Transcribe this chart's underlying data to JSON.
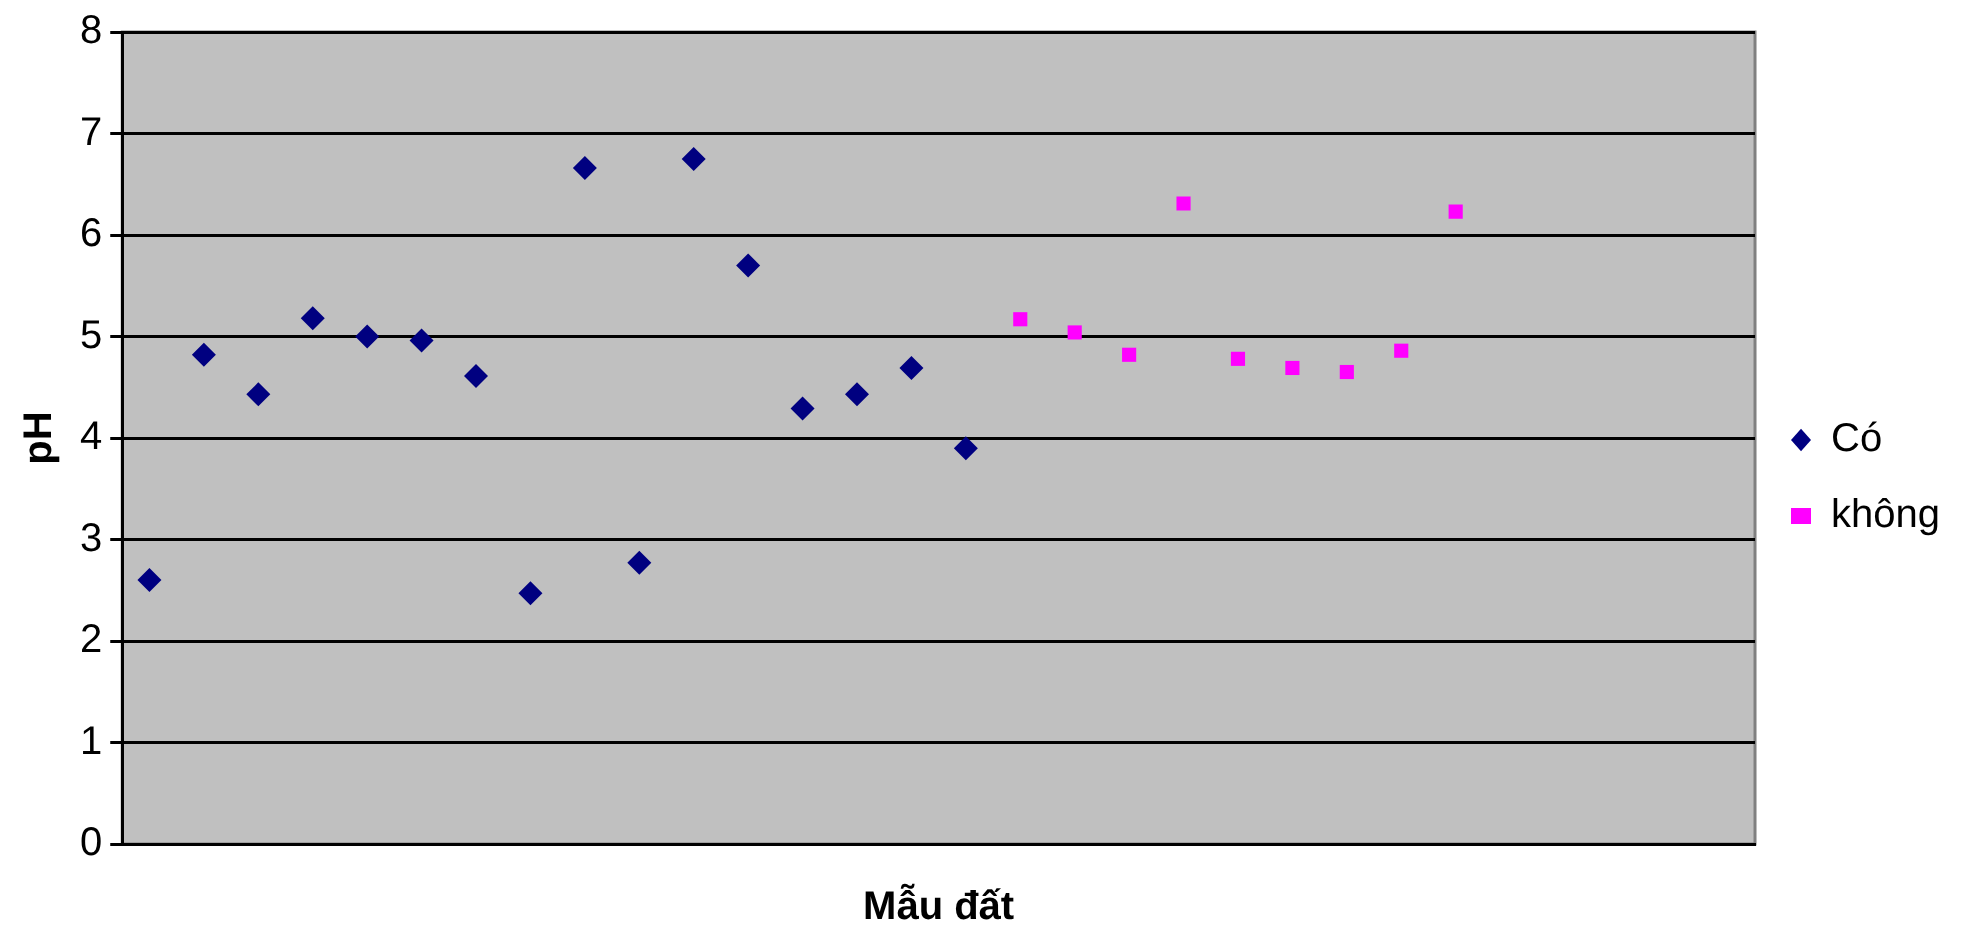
{
  "chart_data": {
    "type": "scatter",
    "xlabel": "Mẫu đất",
    "ylabel": "pH",
    "categories": [
      null,
      null,
      null,
      null,
      null,
      null,
      null,
      null,
      null,
      null,
      null,
      null,
      null,
      null,
      null,
      null,
      null,
      null,
      null,
      null,
      null,
      null,
      null,
      null,
      null,
      null,
      null,
      null,
      null,
      null
    ],
    "ylim": [
      0,
      8
    ],
    "yticks": [
      0,
      1,
      2,
      3,
      4,
      5,
      6,
      7,
      8
    ],
    "grid": "y",
    "legend": "right",
    "tick_labels": "y",
    "series": [
      {
        "name": "Có",
        "color": "#000080",
        "marker": "diamond",
        "values": [
          2.6,
          4.82,
          4.43,
          5.18,
          5.0,
          4.96,
          4.61,
          2.47,
          6.66,
          2.77,
          6.75,
          5.7,
          4.29,
          4.43,
          4.69,
          3.9,
          null,
          null,
          null,
          null,
          null,
          null,
          null,
          null,
          null,
          null,
          null,
          null,
          null,
          null
        ]
      },
      {
        "name": "không",
        "color": "#ff00ff",
        "marker": "square",
        "values": [
          null,
          null,
          null,
          null,
          null,
          null,
          null,
          null,
          null,
          null,
          null,
          null,
          null,
          null,
          null,
          null,
          5.17,
          5.04,
          4.82,
          6.31,
          4.78,
          4.69,
          4.65,
          4.86,
          6.23,
          null,
          null,
          null,
          null,
          null
        ]
      }
    ]
  }
}
